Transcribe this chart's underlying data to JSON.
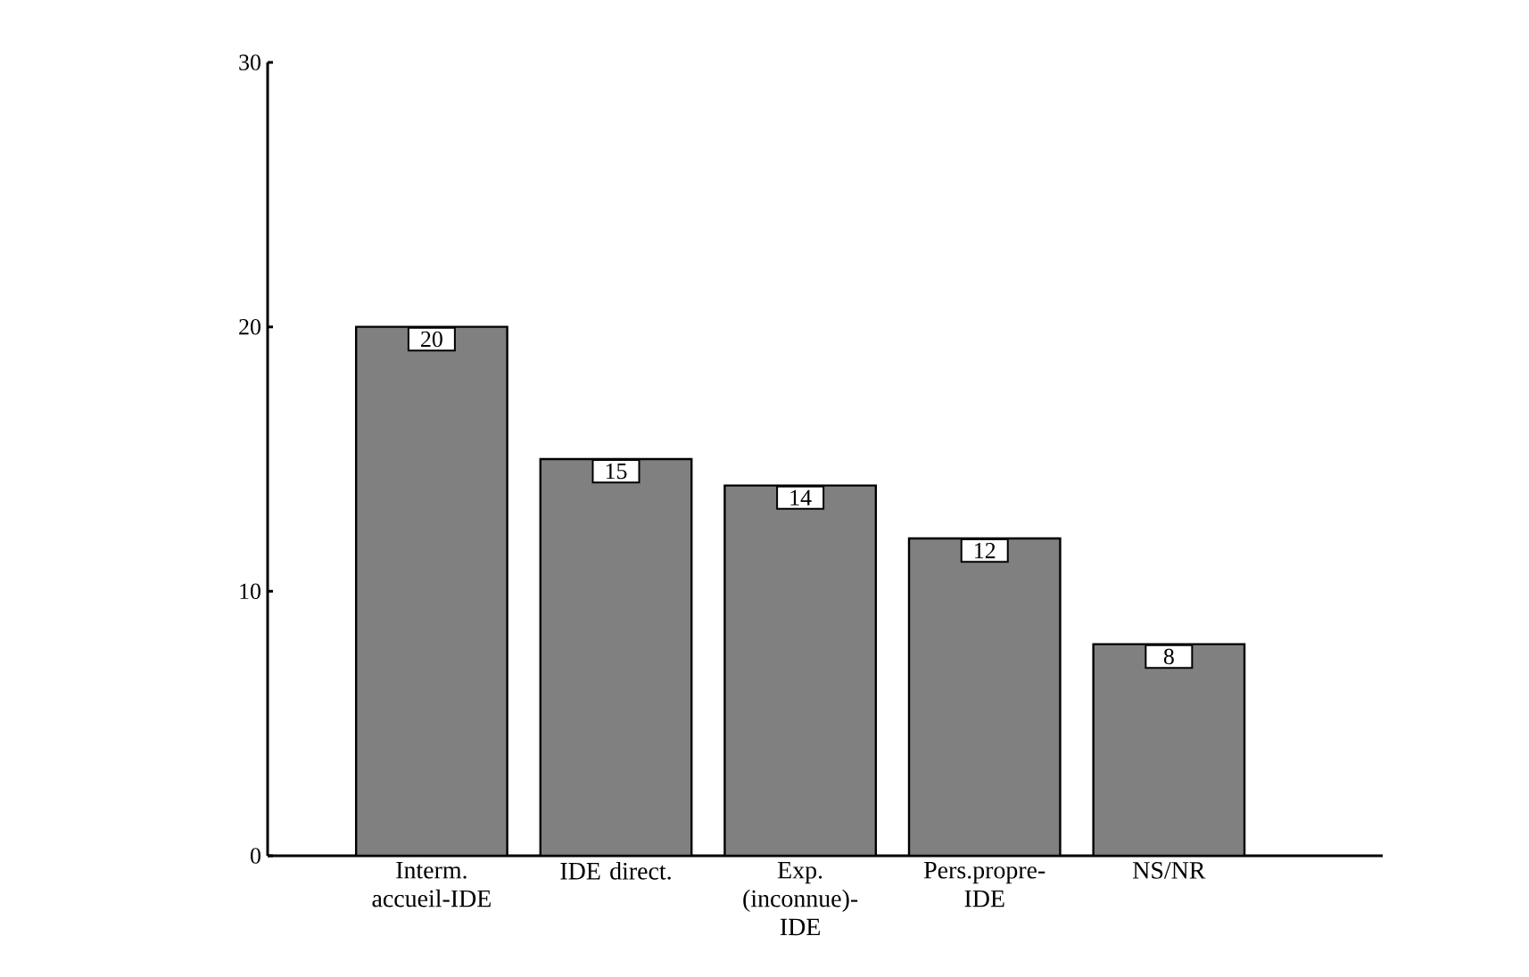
{
  "chart_data": {
    "type": "bar",
    "categories": [
      "Interm. accueil-IDE",
      "IDE direct.",
      "Exp. (inconnue)-IDE",
      "Pers.propre-IDE",
      "NS/NR"
    ],
    "values": [
      20,
      15,
      14,
      12,
      8
    ],
    "color": "#808080",
    "ylim": [
      0,
      30
    ],
    "yticks": [
      0,
      10,
      20,
      30
    ],
    "data_labels": true
  }
}
